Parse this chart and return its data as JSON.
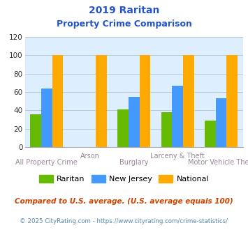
{
  "title_line1": "2019 Raritan",
  "title_line2": "Property Crime Comparison",
  "categories": [
    "All Property Crime",
    "Arson",
    "Burglary",
    "Larceny & Theft",
    "Motor Vehicle Theft"
  ],
  "raritan": [
    36,
    0,
    41,
    38,
    29
  ],
  "new_jersey": [
    64,
    0,
    55,
    67,
    53
  ],
  "national": [
    100,
    100,
    100,
    100,
    100
  ],
  "color_raritan": "#66bb00",
  "color_nj": "#4499ff",
  "color_national": "#ffaa00",
  "ylim": [
    0,
    120
  ],
  "yticks": [
    0,
    20,
    40,
    60,
    80,
    100,
    120
  ],
  "legend_labels": [
    "Raritan",
    "New Jersey",
    "National"
  ],
  "footnote1": "Compared to U.S. average. (U.S. average equals 100)",
  "footnote2": "© 2025 CityRating.com - https://www.cityrating.com/crime-statistics/",
  "bg_color": "#ddeeff",
  "title_color": "#2255cc",
  "xlabel_color": "#998899",
  "footnote1_color": "#cc4400",
  "footnote2_color": "#5588aa"
}
